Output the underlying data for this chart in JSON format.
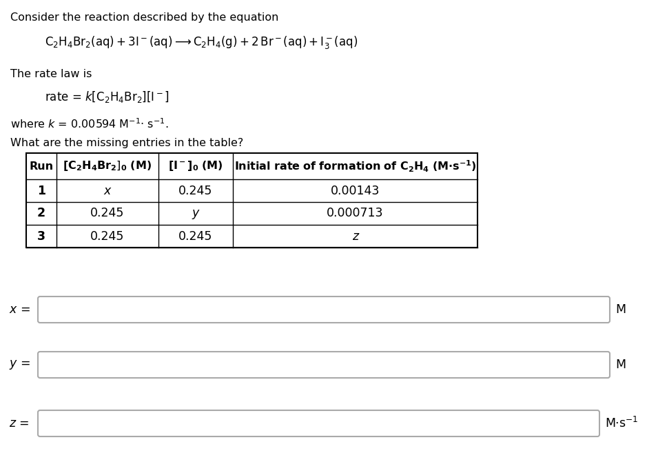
{
  "title_text": "Consider the reaction described by the equation",
  "rate_law_label": "The rate law is",
  "k_value": "0.00594",
  "question": "What are the missing entries in the table?",
  "table_rows": [
    [
      "1",
      "x",
      "0.245",
      "0.00143"
    ],
    [
      "2",
      "0.245",
      "y",
      "0.000713"
    ],
    [
      "3",
      "0.245",
      "0.245",
      "z"
    ]
  ],
  "bg_color": "#ffffff",
  "text_color": "#000000",
  "box_edge_color": "#aaaaaa",
  "font_size": 11.5
}
